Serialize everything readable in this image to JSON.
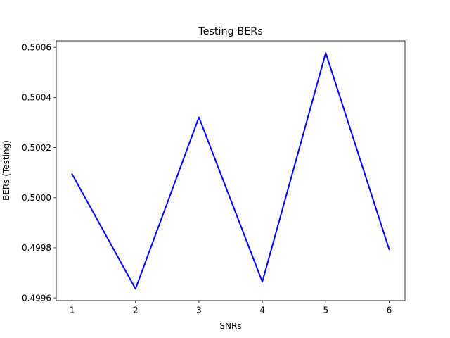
{
  "chart_data": {
    "type": "line",
    "title": "Testing BERs",
    "xlabel": "SNRs",
    "ylabel": "BERs (Testing)",
    "x": [
      1,
      2,
      3,
      4,
      5,
      6
    ],
    "series": [
      {
        "values": [
          0.500094,
          0.499636,
          0.500321,
          0.499664,
          0.500578,
          0.499794
        ],
        "color": "#0000ff"
      }
    ],
    "xticks": [
      "1",
      "2",
      "3",
      "4",
      "5",
      "6"
    ],
    "yticks": [
      "0.4996",
      "0.4998",
      "0.5000",
      "0.5002",
      "0.5004",
      "0.5006"
    ],
    "xlim": [
      0.75,
      6.25
    ],
    "ylim": [
      0.499589,
      0.500626
    ],
    "grid": false,
    "legend": "none"
  }
}
